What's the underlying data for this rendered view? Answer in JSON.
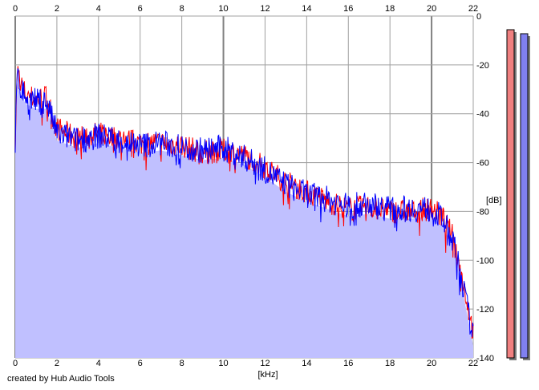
{
  "chart_data": {
    "type": "area",
    "xlabel": "[kHz]",
    "ylabel": "[dB]",
    "xlim": [
      0,
      22
    ],
    "ylim": [
      -140,
      0
    ],
    "x_ticks": [
      "0",
      "2",
      "4",
      "6",
      "8",
      "10",
      "12",
      "14",
      "16",
      "18",
      "20",
      "22"
    ],
    "y_ticks": [
      "0",
      "-20",
      "-40",
      "-60",
      "-80",
      "-100",
      "-120",
      "-140"
    ],
    "grid": true,
    "series": [
      {
        "color": "#ff0000",
        "x": [
          0,
          0.1,
          0.2,
          0.5,
          1,
          1.5,
          2,
          3,
          4,
          5,
          6,
          7,
          8,
          9,
          10,
          11,
          12,
          13,
          14,
          15,
          16,
          17,
          18,
          19,
          20,
          20.5,
          21,
          21.5,
          22
        ],
        "y": [
          -50,
          -22,
          -26,
          -32,
          -34,
          -33,
          -46,
          -50,
          -48,
          -50,
          -52,
          -52,
          -53,
          -56,
          -55,
          -57,
          -62,
          -68,
          -72,
          -76,
          -79,
          -78,
          -80,
          -80,
          -79,
          -82,
          -90,
          -108,
          -130
        ]
      },
      {
        "color": "#0000ff",
        "x": [
          0,
          0.1,
          0.2,
          0.5,
          1,
          1.5,
          2,
          3,
          4,
          5,
          6,
          7,
          8,
          9,
          10,
          11,
          12,
          13,
          14,
          15,
          16,
          17,
          18,
          19,
          20,
          20.5,
          21,
          21.5,
          22
        ],
        "y": [
          -52,
          -24,
          -28,
          -33,
          -35,
          -35,
          -48,
          -51,
          -49,
          -51,
          -53,
          -52,
          -54,
          -55,
          -54,
          -58,
          -63,
          -69,
          -73,
          -75,
          -78,
          -77,
          -79,
          -79,
          -79,
          -83,
          -91,
          -110,
          -132
        ]
      }
    ],
    "level_meters": [
      {
        "color": "#f08080",
        "level": 1.0
      },
      {
        "color": "#8080f0",
        "level": 1.0
      }
    ]
  },
  "footer": {
    "credit": "created by Hub Audio Tools"
  },
  "colors": {
    "fill": "#c0c0ff",
    "grid": "#a0a0a0",
    "grid_major": "#808080"
  }
}
